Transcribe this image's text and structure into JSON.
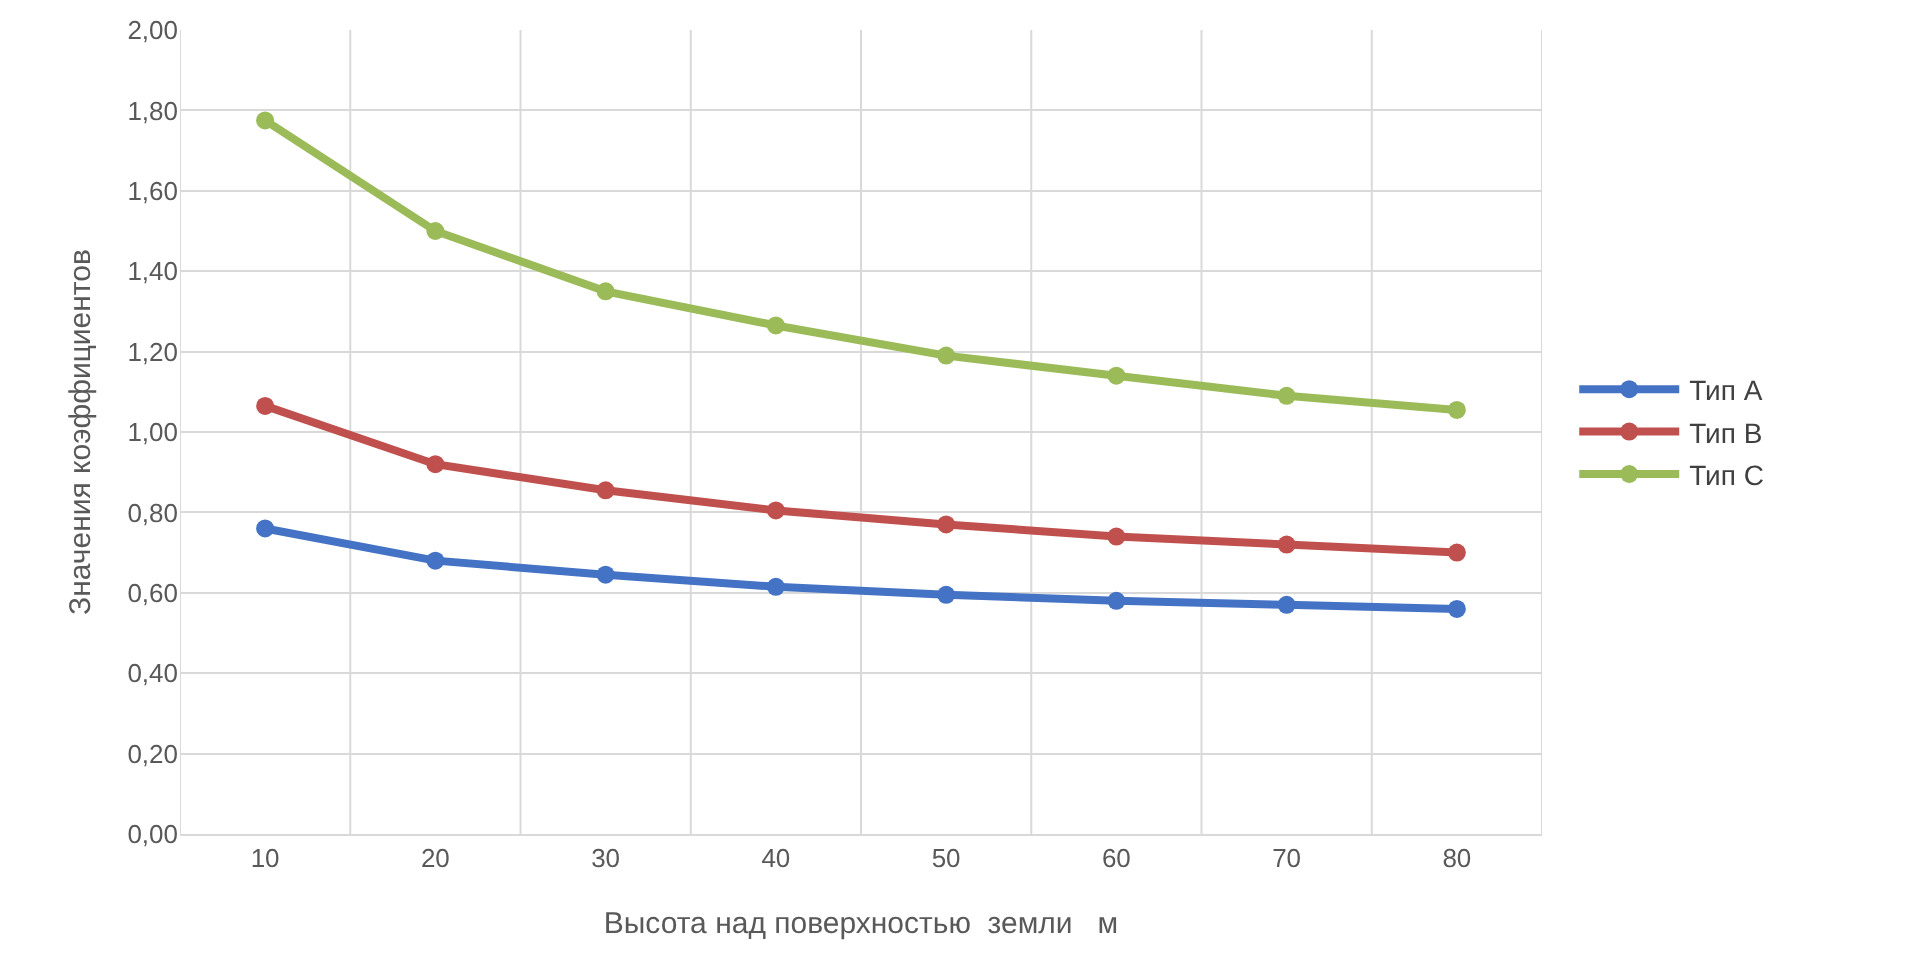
{
  "chart_data": {
    "type": "line",
    "xlabel": "Высота над поверхностью  земли   м",
    "ylabel": "Значения коэффициентов",
    "categories": [
      "10",
      "20",
      "30",
      "40",
      "50",
      "60",
      "70",
      "80"
    ],
    "series": [
      {
        "name": "Тип A",
        "color": "#4472c4",
        "values": [
          0.76,
          0.68,
          0.645,
          0.615,
          0.595,
          0.58,
          0.57,
          0.56
        ]
      },
      {
        "name": "Тип B",
        "color": "#c0504d",
        "values": [
          1.065,
          0.92,
          0.855,
          0.805,
          0.77,
          0.74,
          0.72,
          0.7
        ]
      },
      {
        "name": "Тип C",
        "color": "#9bbb59",
        "values": [
          1.775,
          1.5,
          1.35,
          1.265,
          1.19,
          1.14,
          1.09,
          1.055
        ]
      }
    ],
    "ylim": [
      0,
      2
    ],
    "yticks": [
      {
        "value": 0,
        "label": "0,00"
      },
      {
        "value": 0.2,
        "label": "0,20"
      },
      {
        "value": 0.4,
        "label": "0,40"
      },
      {
        "value": 0.6,
        "label": "0,60"
      },
      {
        "value": 0.8,
        "label": "0,80"
      },
      {
        "value": 1,
        "label": "1,00"
      },
      {
        "value": 1.2,
        "label": "1,20"
      },
      {
        "value": 1.4,
        "label": "1,40"
      },
      {
        "value": 1.6,
        "label": "1,60"
      },
      {
        "value": 1.8,
        "label": "1,80"
      },
      {
        "value": 2,
        "label": "2,00"
      }
    ],
    "grid": true,
    "legend": "right",
    "marker": "circle",
    "line_style": "solid"
  }
}
